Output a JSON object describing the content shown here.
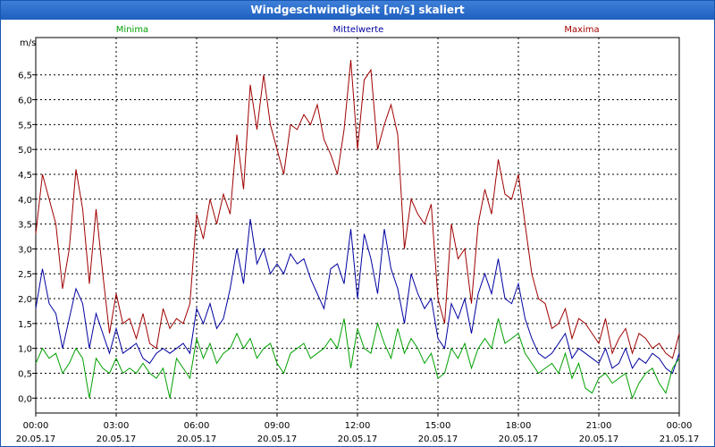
{
  "window": {
    "title": "Windgeschwindigkeit [m/s] skaliert"
  },
  "chart_data": {
    "type": "line",
    "title": "Windgeschwindigkeit [m/s] skaliert",
    "ylabel": "m/s",
    "xlabel": "",
    "ylim": [
      -0.3,
      7.25
    ],
    "xlim": [
      0,
      24
    ],
    "y_ticks": [
      "0,0",
      "0,5",
      "1,0",
      "1,5",
      "2,0",
      "2,5",
      "3,0",
      "3,5",
      "4,0",
      "4,5",
      "5,0",
      "5,5",
      "6,0",
      "6,5"
    ],
    "x_ticks": [
      {
        "time": "00:00",
        "date": "20.05.17"
      },
      {
        "time": "03:00",
        "date": "20.05.17"
      },
      {
        "time": "06:00",
        "date": "20.05.17"
      },
      {
        "time": "09:00",
        "date": "20.05.17"
      },
      {
        "time": "12:00",
        "date": "20.05.17"
      },
      {
        "time": "15:00",
        "date": "20.05.17"
      },
      {
        "time": "18:00",
        "date": "20.05.17"
      },
      {
        "time": "21:00",
        "date": "20.05.17"
      },
      {
        "time": "00:00",
        "date": "21.05.17"
      }
    ],
    "legend": [
      "Minima",
      "Mittelwerte",
      "Maxima"
    ],
    "grid": true,
    "series": [
      {
        "name": "Maxima",
        "color": "#a00000",
        "x": [
          0,
          0.25,
          0.5,
          0.75,
          1,
          1.25,
          1.5,
          1.75,
          2,
          2.25,
          2.5,
          2.75,
          3,
          3.25,
          3.5,
          3.75,
          4,
          4.25,
          4.5,
          4.75,
          5,
          5.25,
          5.5,
          5.75,
          6,
          6.25,
          6.5,
          6.75,
          7,
          7.25,
          7.5,
          7.75,
          8,
          8.25,
          8.5,
          8.75,
          9,
          9.25,
          9.5,
          9.75,
          10,
          10.25,
          10.5,
          10.75,
          11,
          11.25,
          11.5,
          11.75,
          12,
          12.25,
          12.5,
          12.75,
          13,
          13.25,
          13.5,
          13.75,
          14,
          14.25,
          14.5,
          14.75,
          15,
          15.25,
          15.5,
          15.75,
          16,
          16.25,
          16.5,
          16.75,
          17,
          17.25,
          17.5,
          17.75,
          18,
          18.25,
          18.5,
          18.75,
          19,
          19.25,
          19.5,
          19.75,
          20,
          20.25,
          20.5,
          20.75,
          21,
          21.25,
          21.5,
          21.75,
          22,
          22.25,
          22.5,
          22.75,
          23,
          23.25,
          23.5,
          23.75,
          24
        ],
        "values": [
          3.3,
          4.5,
          4.0,
          3.5,
          2.2,
          3.0,
          4.6,
          3.8,
          2.3,
          3.8,
          2.5,
          1.3,
          2.1,
          1.5,
          1.6,
          1.2,
          1.7,
          1.1,
          1.0,
          1.8,
          1.4,
          1.6,
          1.5,
          1.9,
          3.7,
          3.2,
          4.0,
          3.5,
          4.1,
          3.7,
          5.3,
          4.2,
          6.3,
          5.4,
          6.5,
          5.5,
          5.0,
          4.5,
          5.5,
          5.4,
          5.7,
          5.5,
          5.9,
          5.2,
          4.9,
          4.5,
          5.4,
          6.8,
          5.0,
          6.4,
          6.6,
          5.0,
          5.5,
          5.9,
          5.3,
          3.0,
          4.0,
          3.7,
          3.5,
          3.9,
          2.0,
          1.5,
          3.5,
          2.8,
          3.0,
          1.9,
          3.5,
          4.2,
          3.7,
          4.8,
          4.1,
          4.0,
          4.5,
          3.5,
          2.5,
          2.0,
          1.9,
          1.4,
          1.5,
          1.8,
          1.2,
          1.6,
          1.5,
          1.3,
          1.1,
          1.6,
          0.9,
          1.2,
          1.4,
          0.9,
          1.3,
          1.2,
          1.0,
          1.1,
          0.9,
          0.8,
          1.3
        ]
      },
      {
        "name": "Mittelwerte",
        "color": "#0000a0",
        "x": [
          0,
          0.25,
          0.5,
          0.75,
          1,
          1.25,
          1.5,
          1.75,
          2,
          2.25,
          2.5,
          2.75,
          3,
          3.25,
          3.5,
          3.75,
          4,
          4.25,
          4.5,
          4.75,
          5,
          5.25,
          5.5,
          5.75,
          6,
          6.25,
          6.5,
          6.75,
          7,
          7.25,
          7.5,
          7.75,
          8,
          8.25,
          8.5,
          8.75,
          9,
          9.25,
          9.5,
          9.75,
          10,
          10.25,
          10.5,
          10.75,
          11,
          11.25,
          11.5,
          11.75,
          12,
          12.25,
          12.5,
          12.75,
          13,
          13.25,
          13.5,
          13.75,
          14,
          14.25,
          14.5,
          14.75,
          15,
          15.25,
          15.5,
          15.75,
          16,
          16.25,
          16.5,
          16.75,
          17,
          17.25,
          17.5,
          17.75,
          18,
          18.25,
          18.5,
          18.75,
          19,
          19.25,
          19.5,
          19.75,
          20,
          20.25,
          20.5,
          20.75,
          21,
          21.25,
          21.5,
          21.75,
          22,
          22.25,
          22.5,
          22.75,
          23,
          23.25,
          23.5,
          23.75,
          24
        ],
        "values": [
          1.8,
          2.6,
          1.9,
          1.7,
          1.0,
          1.6,
          2.2,
          1.9,
          1.0,
          1.7,
          1.3,
          0.9,
          1.4,
          0.9,
          1.0,
          1.1,
          0.8,
          0.7,
          0.9,
          1.0,
          0.9,
          1.0,
          1.1,
          0.9,
          1.8,
          1.5,
          1.9,
          1.4,
          1.6,
          2.2,
          3.0,
          2.3,
          3.6,
          2.7,
          3.0,
          2.5,
          2.7,
          2.5,
          2.9,
          2.7,
          2.8,
          2.4,
          2.1,
          1.8,
          2.6,
          2.7,
          2.3,
          3.4,
          2.0,
          3.3,
          2.8,
          2.1,
          3.4,
          2.6,
          2.2,
          1.5,
          2.5,
          2.1,
          1.8,
          2.0,
          1.2,
          1.0,
          1.9,
          1.6,
          2.0,
          1.3,
          2.1,
          2.5,
          2.1,
          2.8,
          2.0,
          1.9,
          2.3,
          1.6,
          1.2,
          0.9,
          0.8,
          0.9,
          1.1,
          1.3,
          0.8,
          1.0,
          0.9,
          0.8,
          0.7,
          1.0,
          0.6,
          0.7,
          1.0,
          0.6,
          0.8,
          0.7,
          0.9,
          0.8,
          0.6,
          0.5,
          0.9
        ]
      },
      {
        "name": "Minima",
        "color": "#00a000",
        "x": [
          0,
          0.25,
          0.5,
          0.75,
          1,
          1.25,
          1.5,
          1.75,
          2,
          2.25,
          2.5,
          2.75,
          3,
          3.25,
          3.5,
          3.75,
          4,
          4.25,
          4.5,
          4.75,
          5,
          5.25,
          5.5,
          5.75,
          6,
          6.25,
          6.5,
          6.75,
          7,
          7.25,
          7.5,
          7.75,
          8,
          8.25,
          8.5,
          8.75,
          9,
          9.25,
          9.5,
          9.75,
          10,
          10.25,
          10.5,
          10.75,
          11,
          11.25,
          11.5,
          11.75,
          12,
          12.25,
          12.5,
          12.75,
          13,
          13.25,
          13.5,
          13.75,
          14,
          14.25,
          14.5,
          14.75,
          15,
          15.25,
          15.5,
          15.75,
          16,
          16.25,
          16.5,
          16.75,
          17,
          17.25,
          17.5,
          17.75,
          18,
          18.25,
          18.5,
          18.75,
          19,
          19.25,
          19.5,
          19.75,
          20,
          20.25,
          20.5,
          20.75,
          21,
          21.25,
          21.5,
          21.75,
          22,
          22.25,
          22.5,
          22.75,
          23,
          23.25,
          23.5,
          23.75,
          24
        ],
        "values": [
          0.7,
          1.0,
          0.8,
          0.9,
          0.5,
          0.7,
          1.0,
          0.8,
          0.0,
          0.8,
          0.6,
          0.5,
          0.8,
          0.5,
          0.6,
          0.5,
          0.7,
          0.5,
          0.4,
          0.6,
          0.0,
          0.8,
          0.6,
          0.4,
          1.2,
          0.8,
          1.1,
          0.7,
          0.9,
          1.0,
          1.3,
          1.0,
          1.2,
          0.8,
          1.0,
          1.1,
          0.7,
          0.5,
          0.9,
          1.0,
          1.1,
          0.8,
          0.9,
          1.0,
          1.2,
          1.0,
          1.6,
          0.6,
          1.4,
          1.0,
          0.9,
          1.5,
          1.1,
          0.8,
          1.4,
          0.9,
          1.2,
          1.0,
          0.7,
          0.9,
          0.4,
          0.5,
          1.0,
          0.8,
          1.1,
          0.6,
          1.0,
          1.2,
          1.0,
          1.6,
          1.1,
          1.2,
          1.3,
          0.9,
          0.7,
          0.5,
          0.6,
          0.7,
          0.5,
          0.9,
          0.4,
          0.7,
          0.2,
          0.1,
          0.4,
          0.5,
          0.3,
          0.4,
          0.5,
          0.0,
          0.3,
          0.5,
          0.6,
          0.3,
          0.1,
          0.6,
          0.8
        ]
      }
    ]
  }
}
